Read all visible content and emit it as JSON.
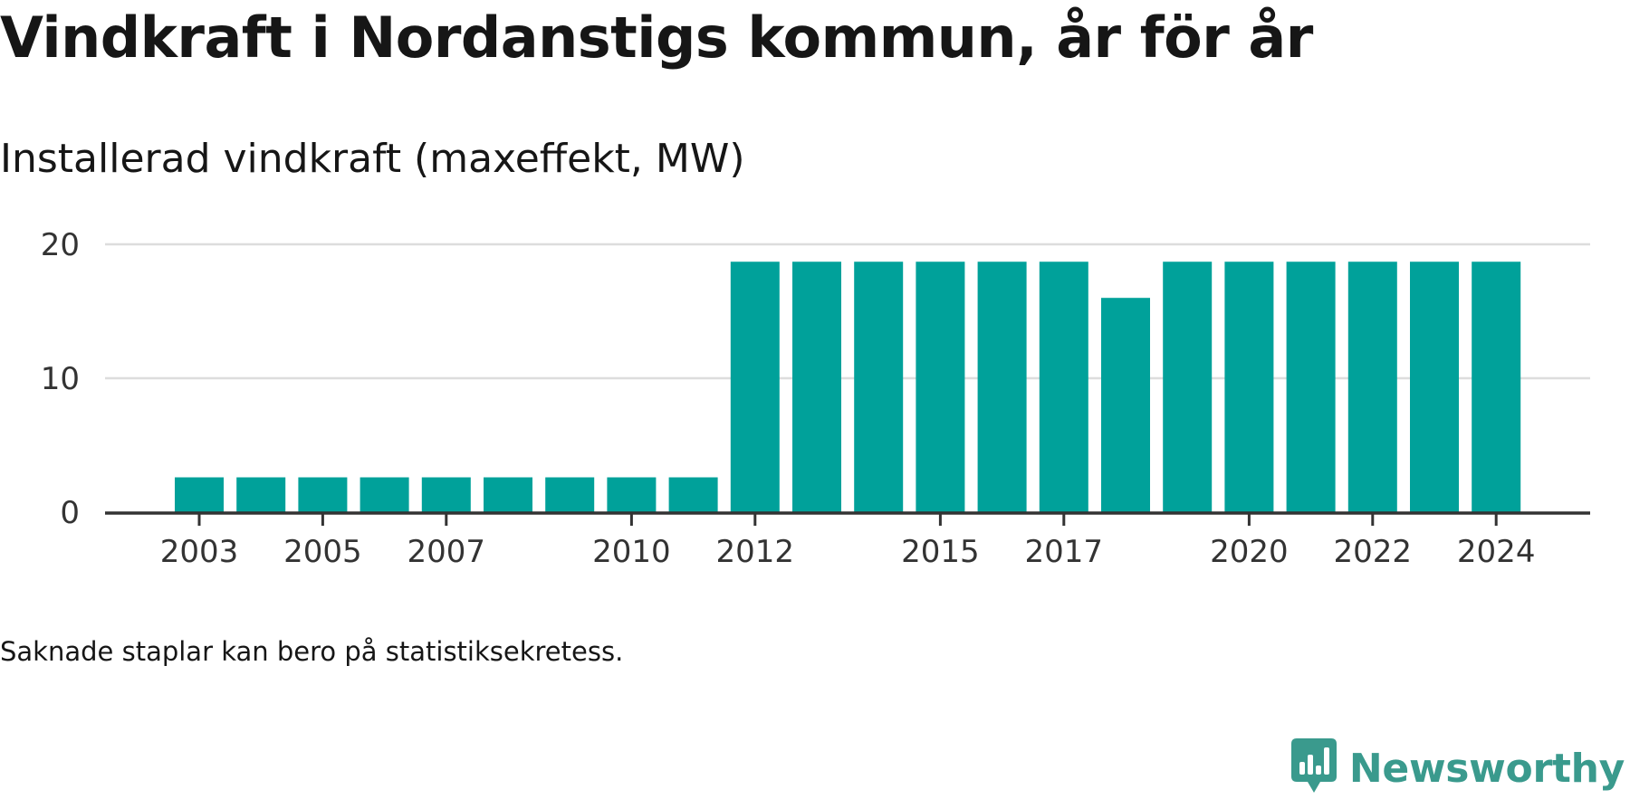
{
  "header": {
    "title": "Vindkraft i Nordanstigs kommun, år för år",
    "subtitle": "Installerad vindkraft (maxeffekt, MW)"
  },
  "footer": {
    "note": "Saknade staplar kan bero på statistiksekretess.",
    "brand": "Newsworthy",
    "brand_icon": "bar-chart-speech-bubble-icon"
  },
  "colors": {
    "bar": "#00a19a",
    "grid": "#dddddd",
    "axis": "#333333",
    "brand": "#3a9a8d"
  },
  "chart_data": {
    "type": "bar",
    "title": "Vindkraft i Nordanstigs kommun, år för år",
    "subtitle": "Installerad vindkraft (maxeffekt, MW)",
    "xlabel": "",
    "ylabel": "",
    "categories": [
      "2003",
      "2004",
      "2005",
      "2006",
      "2007",
      "2008",
      "2009",
      "2010",
      "2011",
      "2012",
      "2013",
      "2014",
      "2015",
      "2016",
      "2017",
      "2018",
      "2019",
      "2020",
      "2021",
      "2022",
      "2023",
      "2024"
    ],
    "values": [
      2.6,
      2.6,
      2.6,
      2.6,
      2.6,
      2.6,
      2.6,
      2.6,
      2.6,
      18.7,
      18.7,
      18.7,
      18.7,
      18.7,
      18.7,
      16.0,
      18.7,
      18.7,
      18.7,
      18.7,
      18.7,
      18.7
    ],
    "x_tick_labels": [
      "2003",
      "2005",
      "2007",
      "2010",
      "2012",
      "2015",
      "2017",
      "2020",
      "2022",
      "2024"
    ],
    "y_ticks": [
      0,
      10,
      20
    ],
    "ylim": [
      0,
      20
    ],
    "grid": "horizontal",
    "legend": "none"
  }
}
